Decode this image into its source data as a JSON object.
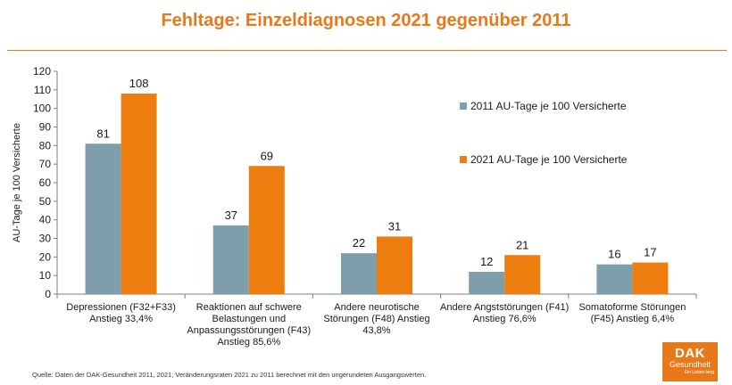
{
  "title": "Fehltage: Einzeldiagnosen 2021 gegenüber 2011",
  "source_note": "Quelle: Daten der DAK-Gesundheit 2011, 2021; Veränderungsraten 2021 zu 2011 berechnet mit den ungerundeten Ausgangswerten.",
  "logo": {
    "main": "DAK",
    "sub": "Gesundheit",
    "tagline": "Ein Leben lang"
  },
  "colors": {
    "accent": "#e8791a",
    "series2011": "#7f9eab",
    "series2021": "#ee7d10"
  },
  "chart_data": {
    "type": "bar",
    "ylabel": "AU-Tage je 100 Versicherte",
    "xlabel": "",
    "ylim": [
      0,
      120
    ],
    "yticks": [
      0,
      10,
      20,
      30,
      40,
      50,
      60,
      70,
      80,
      90,
      100,
      110,
      120
    ],
    "grid": false,
    "legend_position": "right",
    "categories": [
      [
        "Depressionen (F32+F33)",
        "Anstieg 33,4%"
      ],
      [
        "Reaktionen auf schwere",
        "Belastungen und",
        "Anpassungsstörungen (F43)",
        "Anstieg 85,6%"
      ],
      [
        "Andere neurotische",
        "Störungen (F48) Anstieg",
        "43,8%"
      ],
      [
        "Andere Angststörungen (F41)",
        "Anstieg 76,6%"
      ],
      [
        "Somatoforme Störungen",
        "(F45) Anstieg 6,4%"
      ]
    ],
    "series": [
      {
        "name": "2011 AU-Tage je 100 Versicherte",
        "values": [
          81,
          37,
          22,
          12,
          16
        ],
        "color": "#7f9eab"
      },
      {
        "name": "2021 AU-Tage je 100 Versicherte",
        "values": [
          108,
          69,
          31,
          21,
          17
        ],
        "color": "#ee7d10"
      }
    ]
  }
}
